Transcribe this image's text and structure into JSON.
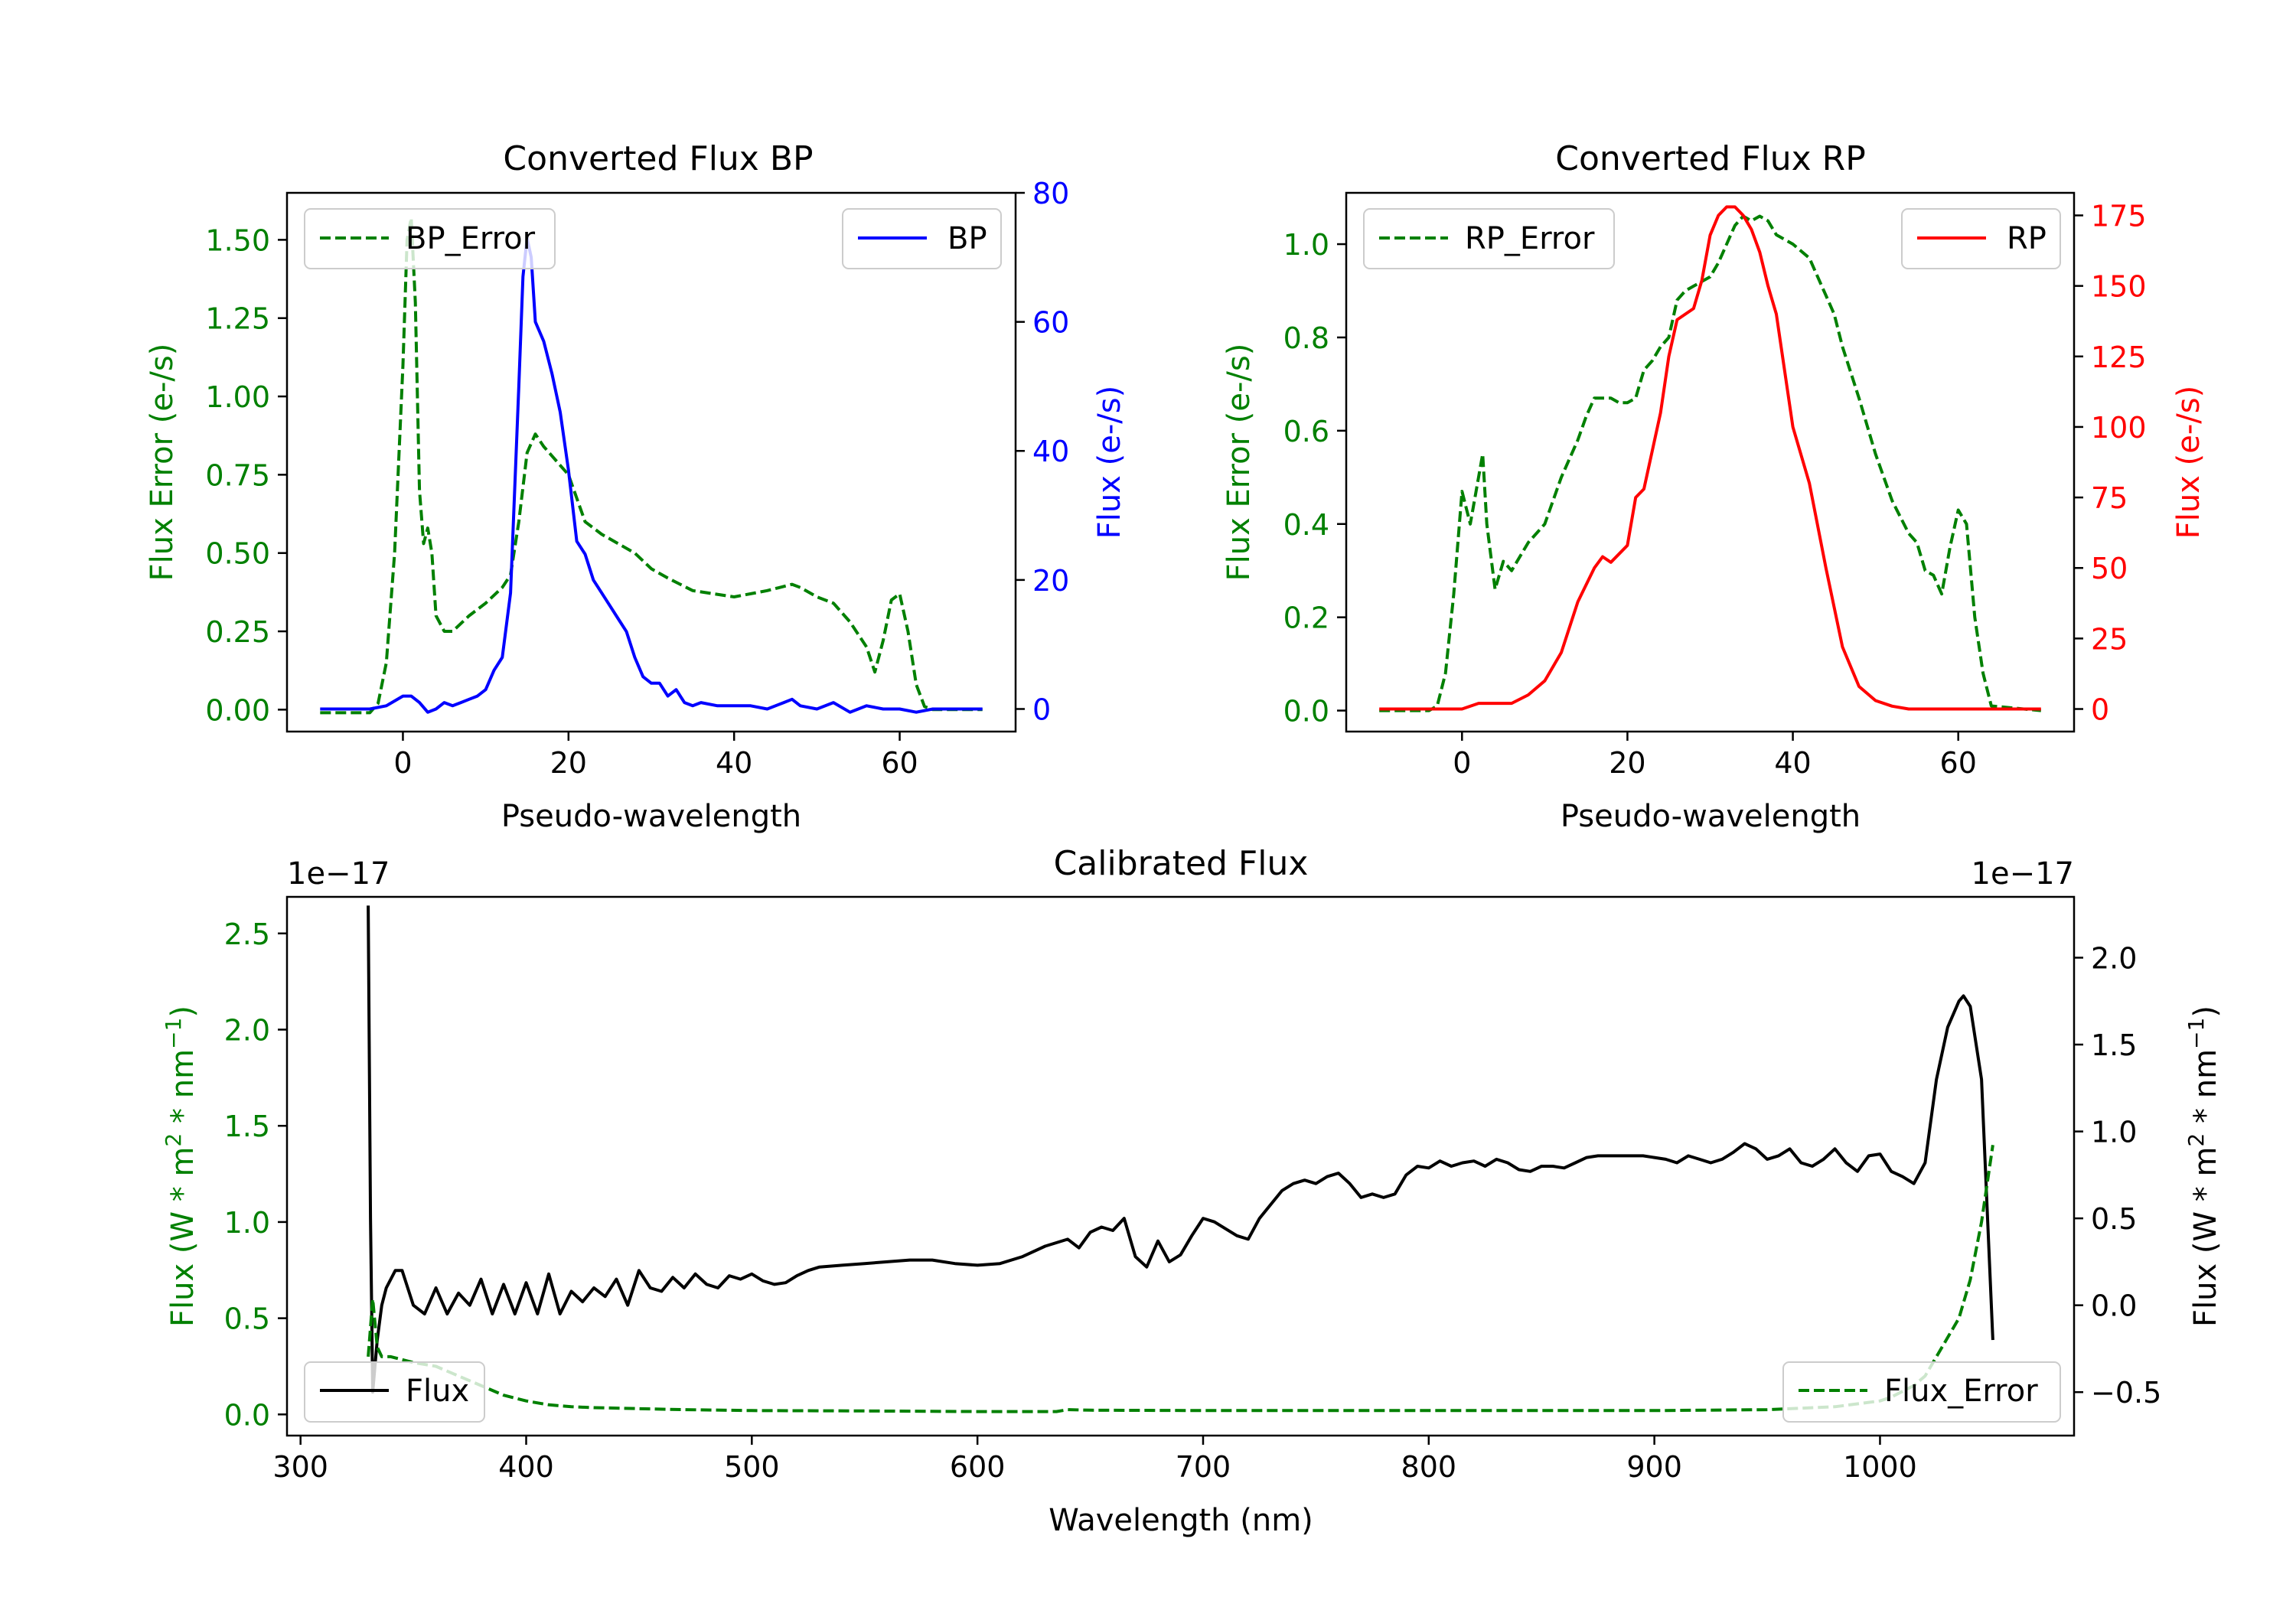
{
  "colors": {
    "bp": "#0000ff",
    "rp": "#ff0000",
    "error": "#008000",
    "flux": "#000000",
    "axis": "#000000"
  },
  "chart_data": [
    {
      "id": "bp",
      "type": "line",
      "title": "Converted Flux BP",
      "xlabel": "Pseudo-wavelength",
      "ylabel_left": "Flux Error (e-/s)",
      "ylabel_right": "Flux (e-/s)",
      "xlim": [
        -14,
        74
      ],
      "ylim_left": [
        -0.07,
        1.65
      ],
      "ylim_right": [
        -3.5,
        80
      ],
      "xticks": [
        0,
        20,
        40,
        60
      ],
      "yticks_left": [
        0.0,
        0.25,
        0.5,
        0.75,
        1.0,
        1.25,
        1.5
      ],
      "yticks_left_labels": [
        "0.00",
        "0.25",
        "0.50",
        "0.75",
        "1.00",
        "1.25",
        "1.50"
      ],
      "yticks_right": [
        0,
        20,
        40,
        60,
        80
      ],
      "yticks_right_labels": [
        "0",
        "20",
        "40",
        "60",
        "80"
      ],
      "legend_left": "BP_Error",
      "legend_right": "BP",
      "series": [
        {
          "name": "BP_Error",
          "axis": "left",
          "style": "dashed",
          "x": [
            -10,
            -4,
            -3,
            -2,
            -1,
            0,
            0.5,
            1,
            1.5,
            2,
            2.5,
            3,
            3.5,
            4,
            5,
            6,
            8,
            10,
            12,
            13,
            14,
            15,
            16,
            17,
            18,
            20,
            22,
            24,
            26,
            28,
            30,
            32,
            35,
            40,
            44,
            47,
            48,
            50,
            52,
            54,
            56,
            57,
            58,
            59,
            60,
            61,
            62,
            63,
            64,
            70
          ],
          "y": [
            -0.01,
            -0.01,
            0.02,
            0.15,
            0.5,
            1.1,
            1.5,
            1.57,
            1.3,
            0.7,
            0.53,
            0.58,
            0.5,
            0.3,
            0.25,
            0.25,
            0.3,
            0.34,
            0.39,
            0.43,
            0.6,
            0.82,
            0.88,
            0.84,
            0.81,
            0.75,
            0.6,
            0.56,
            0.53,
            0.5,
            0.45,
            0.42,
            0.38,
            0.36,
            0.38,
            0.4,
            0.39,
            0.36,
            0.34,
            0.28,
            0.2,
            0.12,
            0.22,
            0.35,
            0.37,
            0.25,
            0.08,
            0.01,
            0.0,
            0.0
          ]
        },
        {
          "name": "BP",
          "axis": "right",
          "style": "solid",
          "x": [
            -10,
            -4,
            -2,
            0,
            1,
            2,
            3,
            4,
            5,
            6,
            7,
            8,
            9,
            10,
            11,
            12,
            13,
            14,
            14.5,
            15,
            15.5,
            16,
            17,
            18,
            19,
            20,
            21,
            22,
            23,
            24,
            25,
            26,
            27,
            28,
            29,
            30,
            31,
            32,
            33,
            34,
            35,
            36,
            38,
            40,
            42,
            44,
            46,
            47,
            48,
            50,
            52,
            54,
            56,
            58,
            60,
            62,
            64,
            70
          ],
          "y": [
            0,
            0,
            0.5,
            2,
            2,
            1,
            -0.5,
            0,
            1,
            0.5,
            1,
            1.5,
            2,
            3,
            6,
            8,
            18,
            50,
            67,
            73,
            70,
            60,
            57,
            52,
            46,
            37,
            26,
            24,
            20,
            18,
            16,
            14,
            12,
            8,
            5,
            4,
            4,
            2,
            3,
            1,
            0.5,
            1,
            0.5,
            0.5,
            0.5,
            0,
            1,
            1.5,
            0.5,
            0,
            1,
            -0.5,
            0.5,
            0,
            0,
            -0.5,
            0,
            0
          ]
        }
      ]
    },
    {
      "id": "rp",
      "type": "line",
      "title": "Converted Flux RP",
      "xlabel": "Pseudo-wavelength",
      "ylabel_left": "Flux Error (e-/s)",
      "ylabel_right": "Flux (e-/s)",
      "xlim": [
        -14,
        74
      ],
      "ylim_left": [
        -0.045,
        1.11
      ],
      "ylim_right": [
        -8,
        183
      ],
      "xticks": [
        0,
        20,
        40,
        60
      ],
      "yticks_left": [
        0.0,
        0.2,
        0.4,
        0.6,
        0.8,
        1.0
      ],
      "yticks_left_labels": [
        "0.0",
        "0.2",
        "0.4",
        "0.6",
        "0.8",
        "1.0"
      ],
      "yticks_right": [
        0,
        25,
        50,
        75,
        100,
        125,
        150,
        175
      ],
      "yticks_right_labels": [
        "0",
        "25",
        "50",
        "75",
        "100",
        "125",
        "150",
        "175"
      ],
      "legend_left": "RP_Error",
      "legend_right": "RP",
      "series": [
        {
          "name": "RP_Error",
          "axis": "left",
          "style": "dashed",
          "x": [
            -10,
            -4,
            -3,
            -2,
            -1,
            0,
            1,
            2,
            2.5,
            3,
            4,
            5,
            6,
            8,
            10,
            11,
            12,
            13,
            14,
            15,
            16,
            18,
            19,
            20,
            21,
            22,
            23,
            24,
            25,
            26,
            27,
            28,
            29,
            30,
            31,
            32,
            33,
            34,
            35,
            36,
            37,
            38,
            40,
            42,
            44,
            45,
            46,
            48,
            50,
            52,
            54,
            55,
            56,
            57,
            58,
            59,
            60,
            61,
            62,
            63,
            64,
            70
          ],
          "y": [
            0,
            0,
            0.01,
            0.08,
            0.25,
            0.47,
            0.4,
            0.5,
            0.55,
            0.4,
            0.26,
            0.32,
            0.3,
            0.36,
            0.4,
            0.45,
            0.5,
            0.54,
            0.58,
            0.63,
            0.67,
            0.67,
            0.66,
            0.66,
            0.67,
            0.73,
            0.75,
            0.78,
            0.8,
            0.88,
            0.9,
            0.91,
            0.92,
            0.93,
            0.96,
            1.0,
            1.04,
            1.06,
            1.05,
            1.06,
            1.05,
            1.02,
            1.0,
            0.97,
            0.89,
            0.85,
            0.78,
            0.67,
            0.55,
            0.45,
            0.38,
            0.36,
            0.3,
            0.29,
            0.25,
            0.35,
            0.43,
            0.4,
            0.2,
            0.08,
            0.01,
            0.0
          ]
        },
        {
          "name": "RP",
          "axis": "right",
          "style": "solid",
          "x": [
            -10,
            0,
            2,
            4,
            6,
            8,
            10,
            12,
            14,
            16,
            17,
            18,
            20,
            21,
            22,
            24,
            25,
            26,
            27,
            28,
            29,
            30,
            31,
            32,
            33,
            34,
            35,
            36,
            37,
            38,
            39,
            40,
            42,
            44,
            46,
            48,
            50,
            52,
            54,
            56,
            58,
            60,
            62,
            64,
            70
          ],
          "y": [
            0,
            0,
            2,
            2,
            2,
            5,
            10,
            20,
            38,
            50,
            54,
            52,
            58,
            75,
            78,
            105,
            125,
            138,
            140,
            142,
            152,
            168,
            175,
            178,
            178,
            175,
            170,
            162,
            150,
            140,
            120,
            100,
            80,
            50,
            22,
            8,
            3,
            1,
            0,
            0,
            0,
            0,
            0,
            0,
            0
          ]
        }
      ]
    },
    {
      "id": "calibrated",
      "type": "line",
      "title": "Calibrated Flux",
      "xlabel": "Wavelength (nm)",
      "ylabel_left_base": "Flux (W * m",
      "ylabel_left_exp1": "2",
      "ylabel_left_mid": " * nm",
      "ylabel_left_exp2": "−1",
      "ylabel_left_end": ")",
      "ylabel_right_base": "Flux (W * m",
      "ylabel_right_exp1": "2",
      "ylabel_right_mid": " * nm",
      "ylabel_right_exp2": "−1",
      "ylabel_right_end": ")",
      "offset_left": "1e−17",
      "offset_right": "1e−17",
      "xlim": [
        294,
        1086
      ],
      "ylim_left": [
        -0.11,
        2.69
      ],
      "ylim_right": [
        -0.75,
        2.35
      ],
      "xticks": [
        300,
        400,
        500,
        600,
        700,
        800,
        900,
        1000
      ],
      "yticks_left": [
        0.0,
        0.5,
        1.0,
        1.5,
        2.0,
        2.5
      ],
      "yticks_left_labels": [
        "0.0",
        "0.5",
        "1.0",
        "1.5",
        "2.0",
        "2.5"
      ],
      "yticks_right": [
        -0.5,
        0.0,
        0.5,
        1.0,
        1.5,
        2.0
      ],
      "yticks_right_labels": [
        "−0.5",
        "0.0",
        "0.5",
        "1.0",
        "1.5",
        "2.0"
      ],
      "legend_left": "Flux",
      "legend_right": "Flux_Error",
      "series": [
        {
          "name": "Flux",
          "axis": "right",
          "style": "solid",
          "x": [
            330,
            331,
            332,
            334,
            336,
            338,
            342,
            345,
            350,
            355,
            360,
            365,
            370,
            375,
            380,
            385,
            390,
            395,
            400,
            405,
            410,
            415,
            420,
            425,
            430,
            435,
            440,
            445,
            450,
            455,
            460,
            465,
            470,
            475,
            480,
            485,
            490,
            495,
            500,
            505,
            510,
            515,
            520,
            525,
            530,
            540,
            550,
            560,
            570,
            580,
            590,
            600,
            610,
            620,
            630,
            640,
            645,
            650,
            655,
            660,
            665,
            670,
            675,
            680,
            685,
            690,
            695,
            700,
            705,
            710,
            715,
            720,
            725,
            730,
            735,
            740,
            745,
            750,
            755,
            760,
            765,
            770,
            775,
            780,
            785,
            790,
            795,
            800,
            805,
            810,
            815,
            820,
            825,
            830,
            835,
            840,
            845,
            850,
            855,
            860,
            865,
            870,
            875,
            880,
            885,
            890,
            895,
            900,
            905,
            910,
            915,
            920,
            925,
            930,
            935,
            940,
            945,
            950,
            955,
            960,
            965,
            970,
            975,
            980,
            985,
            990,
            995,
            1000,
            1005,
            1010,
            1015,
            1020,
            1025,
            1030,
            1035,
            1037,
            1040,
            1045,
            1050
          ],
          "y": [
            2.3,
            0.5,
            -0.5,
            -0.2,
            0.0,
            0.1,
            0.2,
            0.2,
            0.0,
            -0.05,
            0.1,
            -0.05,
            0.07,
            0.0,
            0.15,
            -0.05,
            0.12,
            -0.05,
            0.13,
            -0.05,
            0.18,
            -0.05,
            0.08,
            0.02,
            0.1,
            0.05,
            0.15,
            0.0,
            0.2,
            0.1,
            0.08,
            0.16,
            0.1,
            0.18,
            0.12,
            0.1,
            0.17,
            0.15,
            0.18,
            0.14,
            0.12,
            0.13,
            0.17,
            0.2,
            0.22,
            0.23,
            0.24,
            0.25,
            0.26,
            0.26,
            0.24,
            0.23,
            0.24,
            0.28,
            0.34,
            0.38,
            0.33,
            0.42,
            0.45,
            0.43,
            0.5,
            0.28,
            0.22,
            0.37,
            0.25,
            0.29,
            0.4,
            0.5,
            0.48,
            0.44,
            0.4,
            0.38,
            0.5,
            0.58,
            0.66,
            0.7,
            0.72,
            0.7,
            0.74,
            0.76,
            0.7,
            0.62,
            0.64,
            0.62,
            0.64,
            0.75,
            0.8,
            0.79,
            0.83,
            0.8,
            0.82,
            0.83,
            0.8,
            0.84,
            0.82,
            0.78,
            0.77,
            0.8,
            0.8,
            0.79,
            0.82,
            0.85,
            0.86,
            0.86,
            0.86,
            0.86,
            0.86,
            0.85,
            0.84,
            0.82,
            0.86,
            0.84,
            0.82,
            0.84,
            0.88,
            0.93,
            0.9,
            0.84,
            0.86,
            0.9,
            0.82,
            0.8,
            0.84,
            0.9,
            0.82,
            0.77,
            0.86,
            0.87,
            0.77,
            0.74,
            0.7,
            0.82,
            1.3,
            1.6,
            1.75,
            1.78,
            1.72,
            1.3,
            -0.2
          ]
        },
        {
          "name": "Flux_Error",
          "axis": "left",
          "style": "dashed",
          "x": [
            330,
            332,
            334,
            336,
            340,
            350,
            360,
            370,
            380,
            390,
            400,
            410,
            420,
            430,
            450,
            470,
            500,
            550,
            600,
            635,
            640,
            650,
            700,
            750,
            800,
            850,
            900,
            950,
            980,
            1000,
            1005,
            1010,
            1015,
            1020,
            1025,
            1030,
            1035,
            1040,
            1045,
            1050
          ],
          "y": [
            0.3,
            0.6,
            0.35,
            0.3,
            0.3,
            0.27,
            0.25,
            0.2,
            0.15,
            0.1,
            0.07,
            0.05,
            0.04,
            0.035,
            0.03,
            0.025,
            0.02,
            0.018,
            0.015,
            0.015,
            0.025,
            0.022,
            0.02,
            0.02,
            0.02,
            0.02,
            0.02,
            0.025,
            0.04,
            0.07,
            0.09,
            0.12,
            0.15,
            0.2,
            0.3,
            0.4,
            0.5,
            0.7,
            1.0,
            1.4
          ]
        }
      ]
    }
  ]
}
